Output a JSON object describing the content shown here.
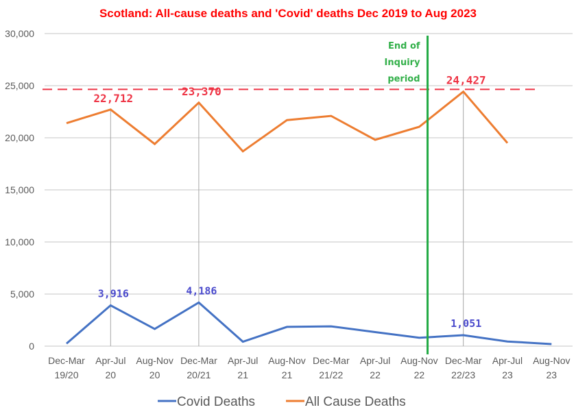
{
  "chart_data": {
    "type": "line",
    "title": "Scotland: All-cause deaths and 'Covid' deaths Dec 2019 to Aug 2023",
    "xlabel": "",
    "ylabel": "",
    "ylim": [
      0,
      30000
    ],
    "yticks": [
      {
        "value": 0,
        "label": "0"
      },
      {
        "value": 5000,
        "label": "5,000"
      },
      {
        "value": 10000,
        "label": "10,000"
      },
      {
        "value": 15000,
        "label": "15,000"
      },
      {
        "value": 20000,
        "label": "20,000"
      },
      {
        "value": 25000,
        "label": "25,000"
      },
      {
        "value": 30000,
        "label": "30,000"
      }
    ],
    "grid": true,
    "categories": [
      [
        "Dec-Mar",
        "19/20"
      ],
      [
        "Apr-Jul",
        "20"
      ],
      [
        "Aug-Nov",
        "20"
      ],
      [
        "Dec-Mar",
        "20/21"
      ],
      [
        "Apr-Jul",
        "21"
      ],
      [
        "Aug-Nov",
        "21"
      ],
      [
        "Dec-Mar",
        "21/22"
      ],
      [
        "Apr-Jul",
        "22"
      ],
      [
        "Aug-Nov",
        "22"
      ],
      [
        "Dec-Mar",
        "22/23"
      ],
      [
        "Apr-Jul",
        "23"
      ],
      [
        "Aug-Nov",
        "23"
      ]
    ],
    "series": [
      {
        "name": "Covid Deaths",
        "color": "#4472c4",
        "values": [
          250,
          3916,
          1650,
          4186,
          430,
          1850,
          1900,
          1350,
          800,
          1051,
          450,
          200
        ]
      },
      {
        "name": "All Cause Deaths",
        "color": "#ed7d31",
        "values": [
          21400,
          22712,
          19400,
          23370,
          18700,
          21700,
          22100,
          19800,
          21050,
          24427,
          19500,
          null
        ]
      }
    ],
    "data_labels": [
      {
        "series": "All Cause Deaths",
        "index": 1,
        "text": "22,712",
        "color": "#ee3344"
      },
      {
        "series": "All Cause Deaths",
        "index": 3,
        "text": "23,370",
        "color": "#ee3344"
      },
      {
        "series": "All Cause Deaths",
        "index": 9,
        "text": "24,427",
        "color": "#ee3344"
      },
      {
        "series": "Covid Deaths",
        "index": 1,
        "text": "3,916",
        "color": "#4a4acc"
      },
      {
        "series": "Covid Deaths",
        "index": 3,
        "text": "4,186",
        "color": "#4a4acc"
      },
      {
        "series": "Covid Deaths",
        "index": 9,
        "text": "1,051",
        "color": "#4a4acc"
      }
    ],
    "drop_lines_at_indices": [
      1,
      3,
      9
    ],
    "reference_line": {
      "value": 24650,
      "style": "dashed",
      "color": "#ee3344"
    },
    "annotation": {
      "lines": [
        "End of",
        "Inquiry",
        "period"
      ],
      "position_between_categories": [
        8,
        9
      ],
      "color": "#22aa44"
    },
    "legend": {
      "placement": "bottom",
      "entries": [
        "Covid Deaths",
        "All Cause Deaths"
      ]
    }
  }
}
